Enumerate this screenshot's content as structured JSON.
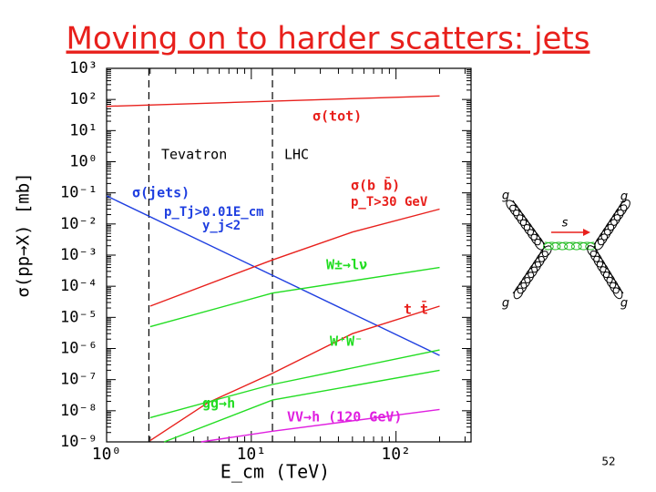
{
  "chart_data": {
    "type": "line",
    "title": "Moving on to harder scatters: jets",
    "page_number": "52",
    "x_label": "E_cm (TeV)",
    "y_label": "σ(pp→X) [mb]",
    "xlog": true,
    "ylog": true,
    "xlim": [
      1,
      330
    ],
    "ylim": [
      1e-09,
      1000
    ],
    "xticks": [
      {
        "value": 1,
        "label": "10⁰"
      },
      {
        "value": 10,
        "label": "10¹"
      },
      {
        "value": 100,
        "label": "10²"
      }
    ],
    "yticks": [
      {
        "value": 1e-09,
        "label": "10⁻⁹"
      },
      {
        "value": 1e-08,
        "label": "10⁻⁸"
      },
      {
        "value": 1e-07,
        "label": "10⁻⁷"
      },
      {
        "value": 1e-06,
        "label": "10⁻⁶"
      },
      {
        "value": 1e-05,
        "label": "10⁻⁵"
      },
      {
        "value": 0.0001,
        "label": "10⁻⁴"
      },
      {
        "value": 0.001,
        "label": "10⁻³"
      },
      {
        "value": 0.01,
        "label": "10⁻²"
      },
      {
        "value": 0.1,
        "label": "10⁻¹"
      },
      {
        "value": 1,
        "label": "10⁰"
      },
      {
        "value": 10,
        "label": "10¹"
      },
      {
        "value": 100,
        "label": "10²"
      },
      {
        "value": 1000,
        "label": "10³"
      }
    ],
    "vlines": [
      {
        "x": 1.96,
        "label": "Tevatron"
      },
      {
        "x": 14,
        "label": "LHC"
      }
    ],
    "series": [
      {
        "name": "σ(tot)",
        "color": "#e8201c",
        "x": [
          1,
          200
        ],
        "values": [
          60,
          130
        ]
      },
      {
        "name": "σ(jets)",
        "color": "#1f3fe0",
        "x": [
          1,
          200
        ],
        "values": [
          0.08,
          6e-07
        ]
      },
      {
        "name": "σ(b b̄)",
        "color": "#e8201c",
        "x": [
          2,
          14,
          50,
          200
        ],
        "values": [
          2.3e-05,
          0.0007,
          0.0055,
          0.03
        ]
      },
      {
        "name": "W±→lν",
        "color": "#22dd22",
        "x": [
          2,
          14,
          200
        ],
        "values": [
          5e-06,
          6e-05,
          0.0004
        ]
      },
      {
        "name": "t t̄",
        "color": "#e8201c",
        "x": [
          2,
          5,
          14,
          50,
          200
        ],
        "values": [
          1.1e-09,
          1.8e-08,
          1.6e-07,
          3e-06,
          2.3e-05
        ]
      },
      {
        "name": "W⁺W⁻",
        "color": "#22dd22",
        "x": [
          2,
          14,
          200
        ],
        "values": [
          6e-09,
          7e-08,
          9e-07
        ]
      },
      {
        "name": "gg→h",
        "color": "#22dd22",
        "x": [
          2.5,
          14,
          200
        ],
        "values": [
          1e-09,
          2.2e-08,
          2e-07
        ]
      },
      {
        "name": "VV→h (120 GeV)",
        "color": "#e020e0",
        "x": [
          4.5,
          14,
          200
        ],
        "values": [
          1e-09,
          2.2e-09,
          1.1e-08
        ]
      }
    ],
    "annotations": [
      {
        "text": "p_Tj>0.01E_cm",
        "color": "#1f3fe0"
      },
      {
        "text": "y_j<2",
        "color": "#1f3fe0"
      },
      {
        "text": "p_T>30 GeV",
        "color": "#e8201c"
      }
    ],
    "diagram_labels": [
      "g",
      "g",
      "s",
      "g",
      "g"
    ]
  }
}
